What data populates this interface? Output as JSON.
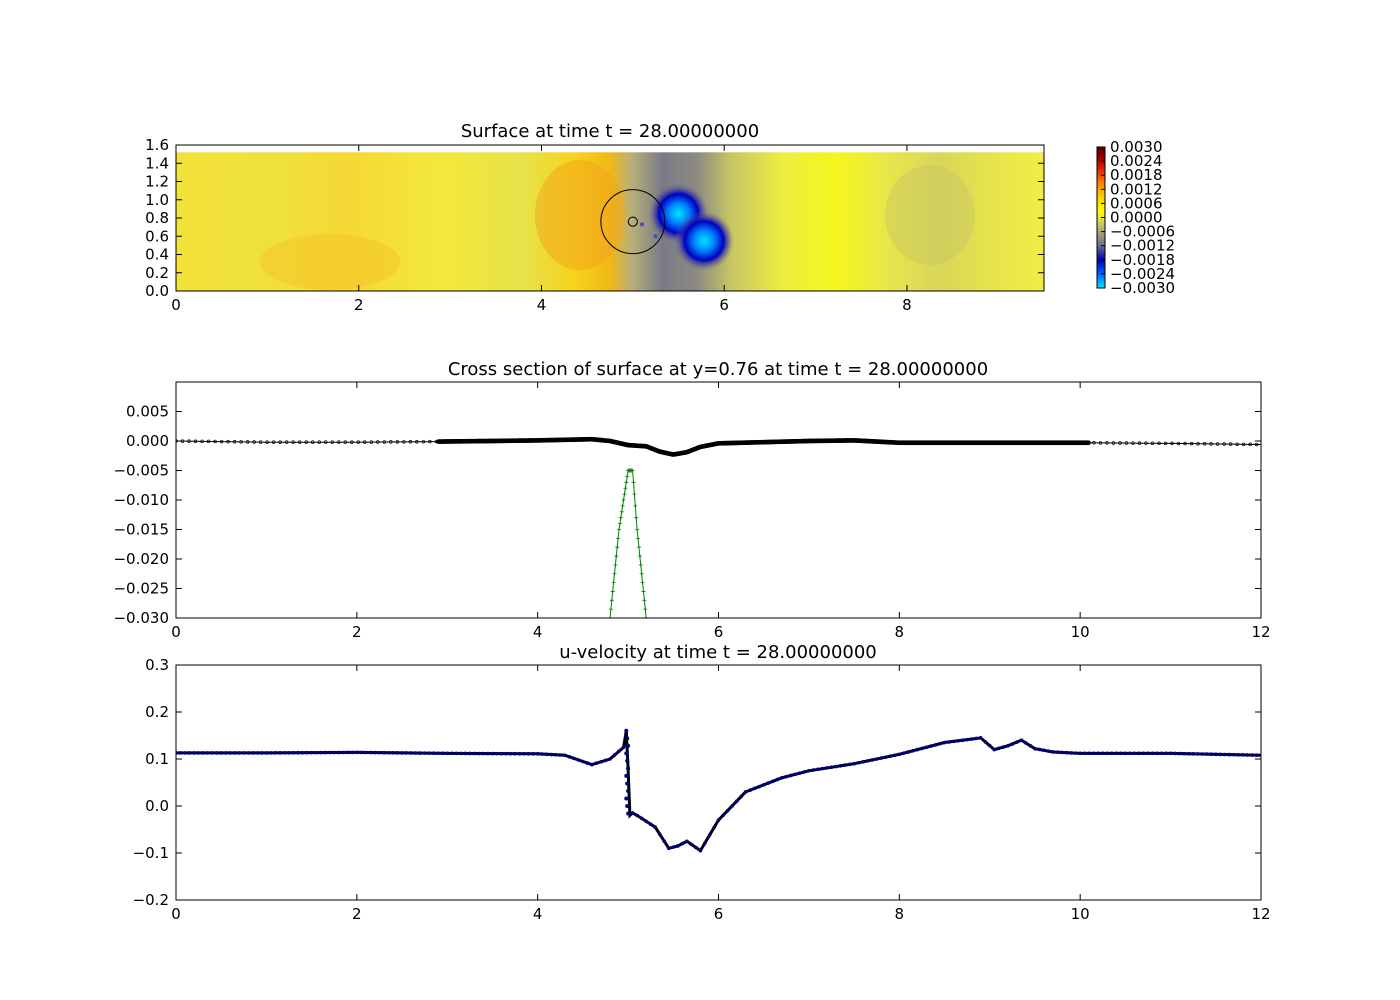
{
  "chart_data": [
    {
      "type": "heatmap",
      "title": "Surface at time t =    28.00000000",
      "xlim": [
        0,
        9.5
      ],
      "ylim": [
        0,
        1.6
      ],
      "xticks": [
        "0",
        "2",
        "4",
        "6",
        "8"
      ],
      "xtick_values": [
        0,
        2,
        4,
        6,
        8
      ],
      "yticks": [
        "0.0",
        "0.2",
        "0.4",
        "0.6",
        "0.8",
        "1.0",
        "1.2",
        "1.4",
        "1.6"
      ],
      "ytick_values": [
        0,
        0.2,
        0.4,
        0.6,
        0.8,
        1.0,
        1.2,
        1.4,
        1.6
      ],
      "data_top": 1.52,
      "colorbar": {
        "range": [
          -0.003,
          0.003
        ],
        "ticks": [
          "0.0030",
          "0.0024",
          "0.0018",
          "0.0012",
          "0.0006",
          "0.0000",
          "−0.0006",
          "−0.0012",
          "−0.0018",
          "−0.0024",
          "−0.0030"
        ],
        "colors": [
          "#00e5ff",
          "#0060ff",
          "#0000b0",
          "#6e6e8c",
          "#a8a880",
          "#e6e63a",
          "#ffff00",
          "#ffcc00",
          "#ff7a00",
          "#e01a00",
          "#900000",
          "#4a0000"
        ]
      },
      "features": [
        {
          "kind": "depression",
          "x": 5.5,
          "y": 0.85,
          "value": -0.003
        },
        {
          "kind": "depression",
          "x": 5.78,
          "y": 0.55,
          "value": -0.003
        },
        {
          "kind": "obstacle-circle",
          "x": 5.0,
          "y": 0.76,
          "r": 0.35
        },
        {
          "kind": "obstacle-circle-small",
          "x": 5.0,
          "y": 0.76,
          "r": 0.05
        }
      ]
    },
    {
      "type": "line",
      "title": "Cross section of surface at y=0.76 at time t =    28.00000000",
      "xlim": [
        0,
        12
      ],
      "ylim": [
        -0.03,
        0.01
      ],
      "xticks": [
        "0",
        "2",
        "4",
        "6",
        "8",
        "10",
        "12"
      ],
      "xtick_values": [
        0,
        2,
        4,
        6,
        8,
        10,
        12
      ],
      "yticks": [
        "0.005",
        "0.000",
        "−0.005",
        "−0.010",
        "−0.015",
        "−0.020",
        "−0.025",
        "−0.030"
      ],
      "ytick_values": [
        0.005,
        0,
        -0.005,
        -0.01,
        -0.015,
        -0.02,
        -0.025,
        -0.03
      ],
      "series": [
        {
          "color": "#000000",
          "x": [
            0,
            0.5,
            1,
            2,
            2.9,
            3.5,
            4,
            4.3,
            4.6,
            4.8,
            5.0,
            5.2,
            5.35,
            5.5,
            5.65,
            5.8,
            6.0,
            6.5,
            7,
            7.5,
            8,
            9,
            10.1,
            11,
            12
          ],
          "y": [
            0.0,
            -0.0001,
            -0.0002,
            -0.0002,
            -0.0001,
            0.0,
            0.0001,
            0.0002,
            0.0003,
            0.0,
            -0.0007,
            -0.0009,
            -0.0018,
            -0.0023,
            -0.0019,
            -0.001,
            -0.0004,
            -0.0002,
            0.0,
            0.0001,
            -0.0003,
            -0.0003,
            -0.0003,
            -0.0004,
            -0.0006
          ]
        },
        {
          "color": "#008000",
          "x": [
            4.8,
            4.9,
            5.0,
            5.05,
            5.1,
            5.2
          ],
          "y": [
            -0.03,
            -0.015,
            -0.005,
            -0.005,
            -0.015,
            -0.03
          ]
        }
      ]
    },
    {
      "type": "scatter",
      "title": "u-velocity at time t =    28.00000000",
      "xlim": [
        0,
        12
      ],
      "ylim": [
        -0.2,
        0.3
      ],
      "xticks": [
        "0",
        "2",
        "4",
        "6",
        "8",
        "10",
        "12"
      ],
      "xtick_values": [
        0,
        2,
        4,
        6,
        8,
        10,
        12
      ],
      "yticks": [
        "0.3",
        "0.2",
        "0.1",
        "0.0",
        "−0.1",
        "−0.2"
      ],
      "ytick_values": [
        0.3,
        0.2,
        0.1,
        0,
        -0.1,
        -0.2
      ],
      "series": [
        {
          "color": "#00008b",
          "x": [
            0,
            1,
            2,
            3,
            4,
            4.3,
            4.6,
            4.8,
            4.95,
            4.98,
            5.0,
            5.02,
            5.05,
            5.1,
            5.3,
            5.45,
            5.55,
            5.65,
            5.8,
            6.0,
            6.3,
            6.7,
            7.0,
            7.5,
            8.0,
            8.5,
            8.9,
            9.05,
            9.2,
            9.35,
            9.5,
            9.7,
            10.0,
            11,
            12
          ],
          "y": [
            0.113,
            0.113,
            0.114,
            0.112,
            0.111,
            0.108,
            0.088,
            0.1,
            0.125,
            0.16,
            0.08,
            -0.02,
            -0.015,
            -0.02,
            -0.045,
            -0.09,
            -0.085,
            -0.075,
            -0.095,
            -0.03,
            0.03,
            0.06,
            0.075,
            0.09,
            0.11,
            0.135,
            0.145,
            0.12,
            0.128,
            0.14,
            0.122,
            0.115,
            0.112,
            0.112,
            0.108
          ]
        }
      ]
    }
  ]
}
